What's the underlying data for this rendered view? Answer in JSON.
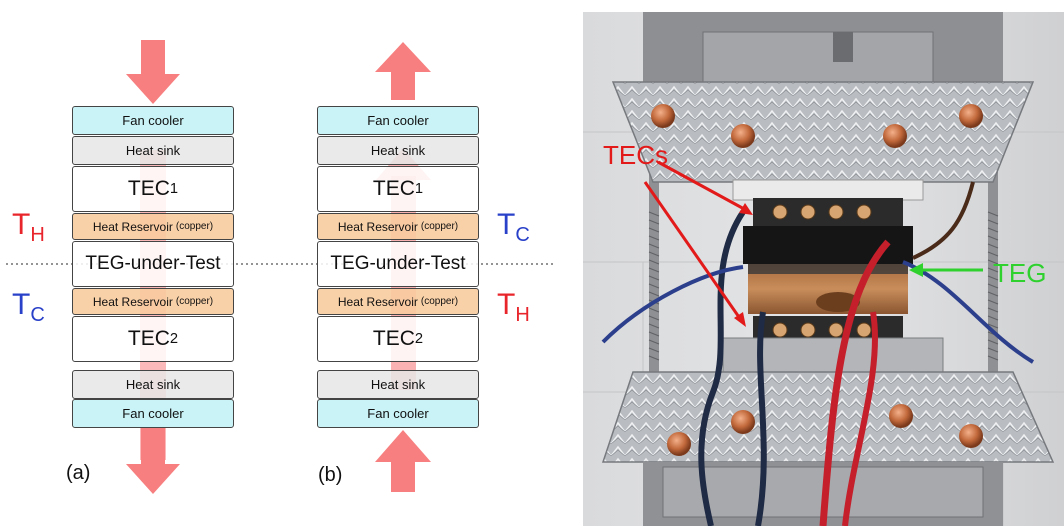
{
  "panel_a": {
    "label": "(a)",
    "layers": {
      "fan_top": "Fan cooler",
      "sink_top": "Heat sink",
      "tec1": "TEC",
      "tec1_sub": "1",
      "res_top": "Heat Reservoir",
      "res_top_small": "(copper)",
      "teg": "TEG-under-Test",
      "res_bottom": "Heat Reservoir",
      "res_bottom_small": "(copper)",
      "tec2": "TEC",
      "tec2_sub": "2",
      "sink_bottom": "Heat sink",
      "fan_bottom": "Fan cooler"
    },
    "upper_temp": "T",
    "upper_temp_sub": "H",
    "lower_temp": "T",
    "lower_temp_sub": "C"
  },
  "panel_b": {
    "label": "(b)",
    "layers": {
      "fan_top": "Fan cooler",
      "sink_top": "Heat sink",
      "tec1": "TEC",
      "tec1_sub": "1",
      "res_top": "Heat Reservoir",
      "res_top_small": "(copper)",
      "teg": "TEG-under-Test",
      "res_bottom": "Heat Reservoir",
      "res_bottom_small": "(copper)",
      "tec2": "TEC",
      "tec2_sub": "2",
      "sink_bottom": "Heat sink",
      "fan_bottom": "Fan cooler"
    },
    "upper_temp": "T",
    "upper_temp_sub": "C",
    "lower_temp": "T",
    "lower_temp_sub": "H"
  },
  "photo": {
    "tecs_label": "TECs",
    "teg_label": "TEG"
  },
  "colors": {
    "hot": "#e8252b",
    "cold": "#2940c8",
    "arrow": "#f77f7f",
    "teg_label": "#2fd12f",
    "tecs_label": "#e31a1a"
  }
}
